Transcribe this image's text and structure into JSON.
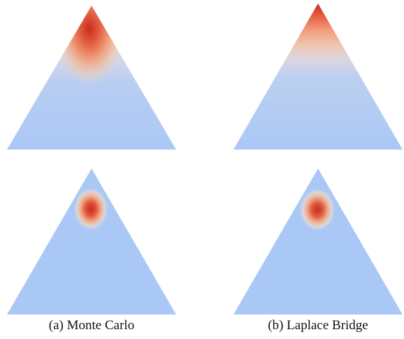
{
  "figure": {
    "captions": {
      "left": "(a) Monte Carlo",
      "right": "(b) Laplace Bridge"
    },
    "colors": {
      "background_low_density": "#aac8f6",
      "mid": "#e9d4c4",
      "high_density": "#cc2a1d"
    },
    "panels": [
      {
        "id": "monte-carlo-broad",
        "method": "Monte Carlo",
        "row": 1,
        "density": "broad, peak near top vertex"
      },
      {
        "id": "laplace-bridge-broad",
        "method": "Laplace Bridge",
        "row": 1,
        "density": "broad, peak at top vertex"
      },
      {
        "id": "monte-carlo-concentrated",
        "method": "Monte Carlo",
        "row": 2,
        "density": "concentrated blob near top"
      },
      {
        "id": "laplace-bridge-concentrated",
        "method": "Laplace Bridge",
        "row": 2,
        "density": "concentrated blob near top"
      }
    ]
  }
}
